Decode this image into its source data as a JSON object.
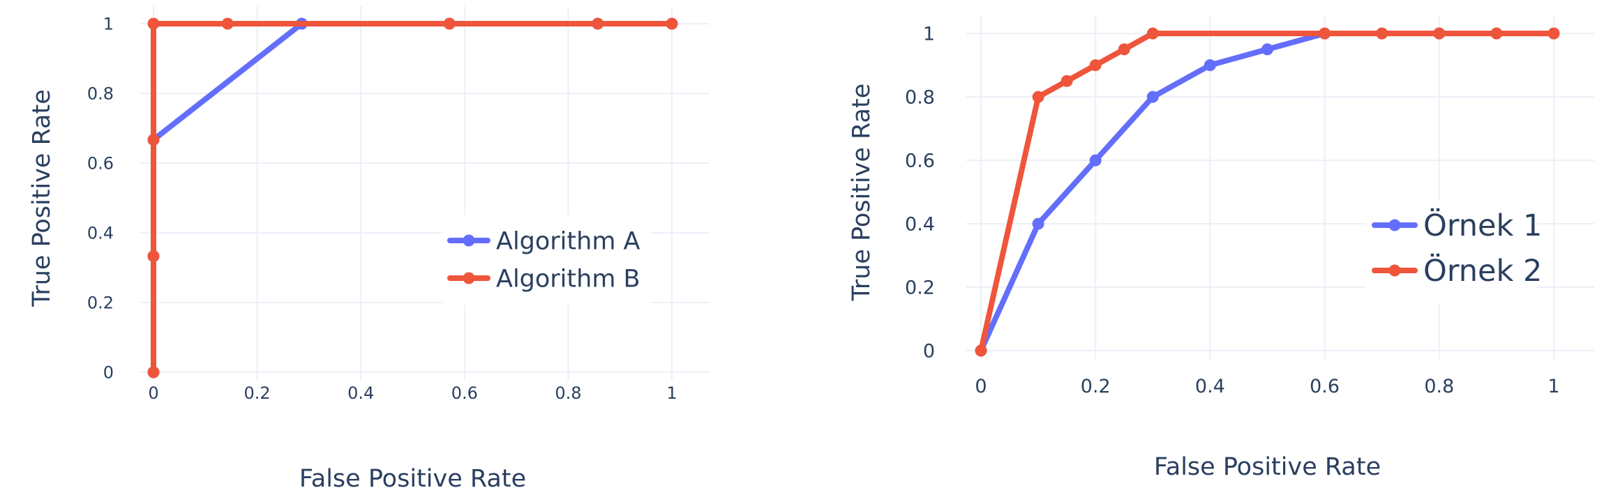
{
  "chart_data": [
    {
      "type": "line",
      "xlabel": "False Positive Rate",
      "ylabel": "True Positive Rate",
      "xlim": [
        0,
        1
      ],
      "ylim": [
        0,
        1
      ],
      "x_ticks": [
        "0",
        "0.2",
        "0.4",
        "0.6",
        "0.8",
        "1"
      ],
      "y_ticks": [
        "0",
        "0.2",
        "0.4",
        "0.6",
        "0.8",
        "1"
      ],
      "grid": true,
      "legend_position": "right-middle",
      "series": [
        {
          "name": "Algorithm A",
          "color": "#636efa",
          "x": [
            0,
            0,
            0,
            0.286,
            0.286,
            0.571,
            0.857,
            1
          ],
          "y": [
            0,
            0.333,
            0.667,
            1,
            1,
            1,
            1,
            1
          ]
        },
        {
          "name": "Algorithm B",
          "color": "#ef553b",
          "x": [
            0,
            0,
            0,
            0,
            0.143,
            0.571,
            0.857,
            1
          ],
          "y": [
            0,
            0.333,
            0.667,
            1,
            1,
            1,
            1,
            1
          ]
        }
      ]
    },
    {
      "type": "line",
      "xlabel": "False Positive Rate",
      "ylabel": "True Positive Rate",
      "xlim": [
        0,
        1
      ],
      "ylim": [
        0,
        1
      ],
      "x_ticks": [
        "0",
        "0.2",
        "0.4",
        "0.6",
        "0.8",
        "1"
      ],
      "y_ticks": [
        "0",
        "0.2",
        "0.4",
        "0.6",
        "0.8",
        "1"
      ],
      "grid": true,
      "legend_position": "right-middle",
      "series": [
        {
          "name": "Örnek 1",
          "color": "#636efa",
          "x": [
            0,
            0.1,
            0.2,
            0.3,
            0.4,
            0.5,
            0.6,
            0.7,
            0.8,
            0.9,
            1
          ],
          "y": [
            0,
            0.4,
            0.6,
            0.8,
            0.9,
            0.95,
            1,
            1,
            1,
            1,
            1
          ]
        },
        {
          "name": "Örnek 2",
          "color": "#ef553b",
          "x": [
            0,
            0.1,
            0.15,
            0.2,
            0.25,
            0.3,
            0.6,
            0.7,
            0.8,
            0.9,
            1
          ],
          "y": [
            0,
            0.8,
            0.85,
            0.9,
            0.95,
            1,
            1,
            1,
            1,
            1,
            1
          ]
        }
      ]
    }
  ]
}
